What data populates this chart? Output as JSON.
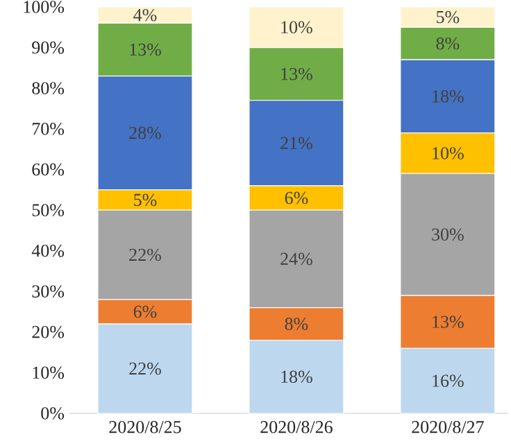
{
  "chart_data": {
    "type": "bar",
    "stacked": true,
    "categories": [
      "2020/8/25",
      "2020/8/26",
      "2020/8/27"
    ],
    "series": [
      {
        "color": "#bdd7ee",
        "values": [
          22,
          18,
          16
        ],
        "value_labels": [
          "22%",
          "18%",
          "16%"
        ]
      },
      {
        "color": "#ed7d31",
        "values": [
          6,
          8,
          13
        ],
        "value_labels": [
          "6%",
          "8%",
          "13%"
        ]
      },
      {
        "color": "#a5a5a5",
        "values": [
          22,
          24,
          30
        ],
        "value_labels": [
          "22%",
          "24%",
          "30%"
        ]
      },
      {
        "color": "#ffc000",
        "values": [
          5,
          6,
          10
        ],
        "value_labels": [
          "5%",
          "6%",
          "10%"
        ]
      },
      {
        "color": "#4472c4",
        "values": [
          28,
          21,
          18
        ],
        "value_labels": [
          "28%",
          "21%",
          "18%"
        ]
      },
      {
        "color": "#70ad47",
        "values": [
          13,
          13,
          8
        ],
        "value_labels": [
          "13%",
          "13%",
          "8%"
        ]
      },
      {
        "color": "#fff2cc",
        "values": [
          4,
          10,
          5
        ],
        "value_labels": [
          "4%",
          "10%",
          "5%"
        ]
      }
    ],
    "ylim": [
      0,
      100
    ],
    "yticks": [
      {
        "value": 0,
        "label": "0%"
      },
      {
        "value": 10,
        "label": "10%"
      },
      {
        "value": 20,
        "label": "20%"
      },
      {
        "value": 30,
        "label": "30%"
      },
      {
        "value": 40,
        "label": "40%"
      },
      {
        "value": 50,
        "label": "50%"
      },
      {
        "value": 60,
        "label": "60%"
      },
      {
        "value": 70,
        "label": "70%"
      },
      {
        "value": 80,
        "label": "80%"
      },
      {
        "value": 90,
        "label": "90%"
      },
      {
        "value": 100,
        "label": "100%"
      }
    ],
    "grid": false
  }
}
